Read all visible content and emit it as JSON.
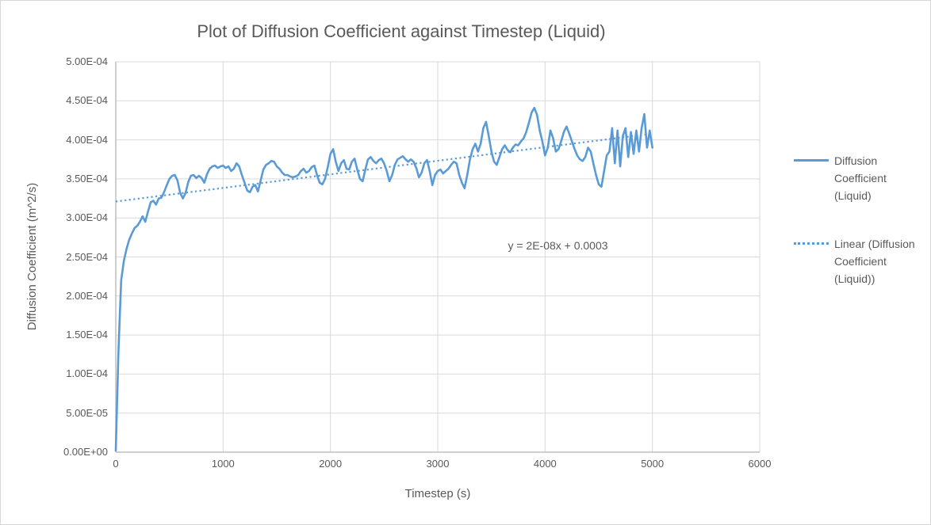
{
  "chart": {
    "title": "Plot of Diffusion Coefficient against Timestep (Liquid)",
    "x_axis": {
      "title": "Timestep (s)",
      "tick_labels": [
        "0",
        "1000",
        "2000",
        "3000",
        "4000",
        "5000",
        "6000"
      ],
      "tick_values": [
        0,
        1000,
        2000,
        3000,
        4000,
        5000,
        6000
      ]
    },
    "y_axis": {
      "title": "Diffusion Coefficient (m^2/s)",
      "tick_labels": [
        "0.00E+00",
        "5.00E-05",
        "1.00E-04",
        "1.50E-04",
        "2.00E-04",
        "2.50E-04",
        "3.00E-04",
        "3.50E-04",
        "4.00E-04",
        "4.50E-04",
        "5.00E-04"
      ],
      "tick_values": [
        0,
        5e-05,
        0.0001,
        0.00015,
        0.0002,
        0.00025,
        0.0003,
        0.00035,
        0.0004,
        0.00045,
        0.0005
      ]
    },
    "annotation": "y = 2E-08x + 0.0003",
    "legend": [
      {
        "label": "Diffusion Coefficient (Liquid)",
        "style": "solid"
      },
      {
        "label": "Linear (Diffusion Coefficient (Liquid))",
        "style": "dotted"
      }
    ],
    "colors": {
      "series": "#5b9bd5",
      "trendline": "#5b9bd5",
      "gridline": "#d9d9d9",
      "axis_line": "#bfbfbf",
      "text": "#595959",
      "chart_border": "#d7d7d7",
      "background": "#ffffff"
    }
  },
  "chart_data": {
    "type": "line",
    "title": "Plot of Diffusion Coefficient against Timestep (Liquid)",
    "xlabel": "Timestep (s)",
    "ylabel": "Diffusion Coefficient (m^2/s)",
    "xlim": [
      0,
      6000
    ],
    "ylim": [
      0,
      0.0005
    ],
    "grid": true,
    "legend_position": "right",
    "unit_multiplier": 0.0001,
    "series": [
      {
        "name": "Diffusion Coefficient (Liquid)",
        "x_start": 0,
        "x_step": 25,
        "values": [
          0.02,
          1.3,
          2.2,
          2.45,
          2.6,
          2.72,
          2.8,
          2.87,
          2.9,
          2.95,
          3.02,
          2.95,
          3.08,
          3.2,
          3.22,
          3.17,
          3.25,
          3.26,
          3.33,
          3.42,
          3.5,
          3.54,
          3.55,
          3.48,
          3.32,
          3.25,
          3.32,
          3.46,
          3.54,
          3.55,
          3.51,
          3.54,
          3.51,
          3.45,
          3.56,
          3.63,
          3.66,
          3.67,
          3.64,
          3.66,
          3.67,
          3.64,
          3.66,
          3.6,
          3.63,
          3.7,
          3.66,
          3.55,
          3.45,
          3.35,
          3.33,
          3.4,
          3.42,
          3.34,
          3.48,
          3.62,
          3.68,
          3.7,
          3.73,
          3.72,
          3.66,
          3.63,
          3.58,
          3.55,
          3.55,
          3.53,
          3.52,
          3.53,
          3.55,
          3.6,
          3.63,
          3.58,
          3.6,
          3.65,
          3.67,
          3.55,
          3.45,
          3.43,
          3.5,
          3.65,
          3.82,
          3.88,
          3.72,
          3.6,
          3.7,
          3.74,
          3.63,
          3.62,
          3.72,
          3.76,
          3.62,
          3.5,
          3.47,
          3.62,
          3.75,
          3.78,
          3.73,
          3.7,
          3.74,
          3.76,
          3.7,
          3.6,
          3.47,
          3.55,
          3.68,
          3.75,
          3.77,
          3.79,
          3.75,
          3.72,
          3.75,
          3.72,
          3.64,
          3.52,
          3.58,
          3.7,
          3.74,
          3.6,
          3.42,
          3.55,
          3.6,
          3.62,
          3.57,
          3.6,
          3.63,
          3.68,
          3.72,
          3.7,
          3.55,
          3.45,
          3.38,
          3.55,
          3.75,
          3.88,
          3.95,
          3.85,
          3.95,
          4.15,
          4.23,
          4.05,
          3.85,
          3.72,
          3.68,
          3.78,
          3.88,
          3.93,
          3.87,
          3.84,
          3.9,
          3.94,
          3.93,
          3.98,
          4.02,
          4.1,
          4.22,
          4.35,
          4.41,
          4.32,
          4.12,
          3.98,
          3.8,
          3.9,
          4.12,
          4.02,
          3.85,
          3.88,
          3.98,
          4.1,
          4.17,
          4.08,
          3.98,
          3.88,
          3.8,
          3.75,
          3.73,
          3.78,
          3.9,
          3.85,
          3.7,
          3.55,
          3.43,
          3.4,
          3.6,
          3.8,
          3.85,
          4.15,
          3.7,
          4.12,
          3.66,
          4.05,
          4.15,
          3.78,
          4.1,
          3.82,
          4.12,
          3.85,
          4.15,
          4.33,
          3.9,
          4.12,
          3.9
        ]
      },
      {
        "name": "Linear (Diffusion Coefficient (Liquid))",
        "type": "linear_trendline",
        "equation": "y = 2E-08x + 0.0003",
        "x": [
          0,
          5000
        ],
        "values": [
          3.21,
          4.08
        ]
      }
    ]
  }
}
